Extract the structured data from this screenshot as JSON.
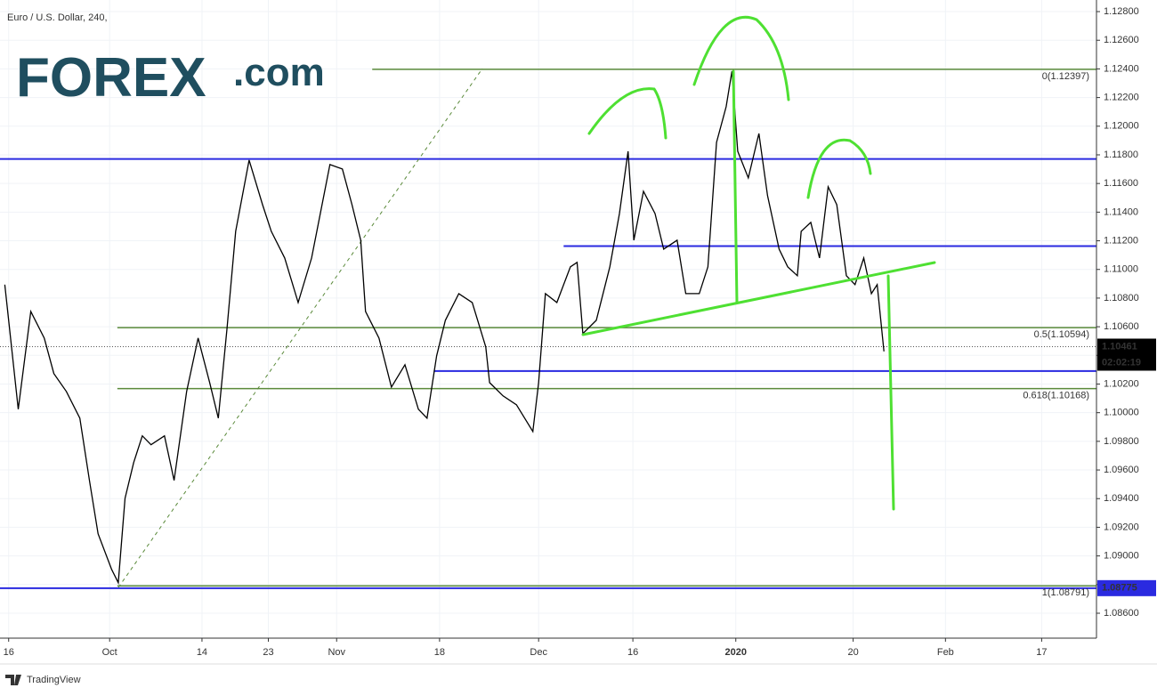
{
  "chart_data": {
    "type": "line",
    "title": "Euro / U.S. Dollar, 240,",
    "logo": {
      "brand": "FOREX",
      "suffix": ".com"
    },
    "footer": "TradingView",
    "xlim": [
      0,
      114
    ],
    "ylim": [
      1.08426,
      1.12881
    ],
    "grid": true,
    "xticks": [
      {
        "value": 0.9,
        "label": "16"
      },
      {
        "value": 11.4,
        "label": "Oct"
      },
      {
        "value": 21,
        "label": "14"
      },
      {
        "value": 27.9,
        "label": "23"
      },
      {
        "value": 35,
        "label": "Nov"
      },
      {
        "value": 45.7,
        "label": "18"
      },
      {
        "value": 56,
        "label": "Dec"
      },
      {
        "value": 65.8,
        "label": "16"
      },
      {
        "value": 76.5,
        "label": "2020"
      },
      {
        "value": 88.7,
        "label": "20"
      },
      {
        "value": 98.3,
        "label": "Feb"
      },
      {
        "value": 108.3,
        "label": "17"
      }
    ],
    "yticks": [
      {
        "value": 1.128,
        "label": "1.12800"
      },
      {
        "value": 1.126,
        "label": "1.12600"
      },
      {
        "value": 1.124,
        "label": "1.12400"
      },
      {
        "value": 1.122,
        "label": "1.12200"
      },
      {
        "value": 1.12,
        "label": "1.12000"
      },
      {
        "value": 1.118,
        "label": "1.11800"
      },
      {
        "value": 1.116,
        "label": "1.11600"
      },
      {
        "value": 1.114,
        "label": "1.11400"
      },
      {
        "value": 1.112,
        "label": "1.11200"
      },
      {
        "value": 1.11,
        "label": "1.11000"
      },
      {
        "value": 1.108,
        "label": "1.10800"
      },
      {
        "value": 1.106,
        "label": "1.10600"
      },
      {
        "value": 1.104,
        "label": "1.10400"
      },
      {
        "value": 1.102,
        "label": "1.10200"
      },
      {
        "value": 1.1,
        "label": "1.10000"
      },
      {
        "value": 1.098,
        "label": "1.09800"
      },
      {
        "value": 1.096,
        "label": "1.09600"
      },
      {
        "value": 1.094,
        "label": "1.09400"
      },
      {
        "value": 1.092,
        "label": "1.09200"
      },
      {
        "value": 1.09,
        "label": "1.09000"
      },
      {
        "value": 1.088,
        "label": "1.08800"
      },
      {
        "value": 1.086,
        "label": "1.08600"
      }
    ],
    "series": [
      {
        "name": "EUR/USD",
        "color": "#000000",
        "x": [
          0.5,
          1.9,
          3.2,
          4.6,
          5.6,
          6.9,
          8.3,
          9.3,
          10.2,
          11.6,
          12.3,
          13.0,
          13.9,
          14.8,
          15.7,
          17.1,
          18.1,
          19.4,
          20.6,
          21.8,
          22.7,
          23.6,
          24.5,
          25.9,
          27.3,
          28.2,
          29.6,
          31.0,
          32.4,
          34.3,
          35.6,
          36.6,
          37.5,
          38.0,
          39.4,
          40.7,
          42.1,
          43.5,
          44.4,
          45.4,
          46.3,
          47.7,
          49.1,
          50.5,
          50.9,
          52.3,
          53.7,
          55.4,
          56.0,
          56.7,
          57.9,
          59.3,
          60.0,
          60.6,
          62.0,
          63.4,
          64.4,
          65.3,
          65.9,
          66.9,
          68.1,
          69.0,
          70.4,
          71.3,
          72.7,
          73.6,
          74.5,
          75.5,
          76.1,
          76.7,
          77.8,
          78.9,
          79.8,
          81.0,
          81.9,
          82.9,
          83.3,
          84.3,
          85.2,
          86.1,
          87.0,
          88.0,
          88.9,
          89.8,
          90.6,
          91.2,
          91.9
        ],
        "values": [
          1.10894,
          1.10024,
          1.10707,
          1.10521,
          1.10273,
          1.10148,
          1.09962,
          1.09527,
          1.09155,
          1.08906,
          1.08813,
          1.09403,
          1.09652,
          1.09838,
          1.09776,
          1.09838,
          1.09527,
          1.10148,
          1.10521,
          1.1021,
          1.09962,
          1.10583,
          1.11266,
          1.11763,
          1.11452,
          1.11266,
          1.1108,
          1.10769,
          1.1108,
          1.11732,
          1.11701,
          1.11452,
          1.11204,
          1.10707,
          1.10521,
          1.10179,
          1.10335,
          1.10024,
          1.09962,
          1.10397,
          1.10645,
          1.10831,
          1.10769,
          1.10459,
          1.1021,
          1.10117,
          1.10055,
          1.09869,
          1.1021,
          1.10831,
          1.10769,
          1.11018,
          1.11049,
          1.10552,
          1.10645,
          1.11018,
          1.1139,
          1.11825,
          1.11204,
          1.11546,
          1.1139,
          1.11142,
          1.11204,
          1.10831,
          1.10831,
          1.11018,
          1.11887,
          1.12136,
          1.12384,
          1.11825,
          1.11639,
          1.11949,
          1.11515,
          1.11142,
          1.11018,
          1.10956,
          1.11266,
          1.11328,
          1.1108,
          1.11577,
          1.11452,
          1.10956,
          1.10894,
          1.1108,
          1.10831,
          1.10894,
          1.10428
        ]
      }
    ],
    "horizontal_lines": [
      {
        "value": 1.11771,
        "x_start": 0,
        "color": "#2a2ae0"
      },
      {
        "value": 1.11163,
        "x_start": 58.6,
        "color": "#2a2ae0"
      },
      {
        "value": 1.10291,
        "x_start": 45.1,
        "color": "#2a2ae0"
      },
      {
        "value": 1.08775,
        "x_start": 0,
        "color": "#2a2ae0"
      }
    ],
    "fib_levels": [
      {
        "label": "0(1.12397)",
        "value": 1.12397,
        "x_start": 38.7
      },
      {
        "label": "0.5(1.10594)",
        "value": 1.10594,
        "x_start": 12.2
      },
      {
        "label": "0.618(1.10168)",
        "value": 1.10168,
        "x_start": 12.2
      },
      {
        "label": "1(1.08791)",
        "value": 1.08791,
        "x_start": 12.2
      }
    ],
    "fib_color": "#5a8a3a",
    "last_price": 1.10461,
    "countdown": "02:02:19",
    "support_label": 1.08775
  }
}
